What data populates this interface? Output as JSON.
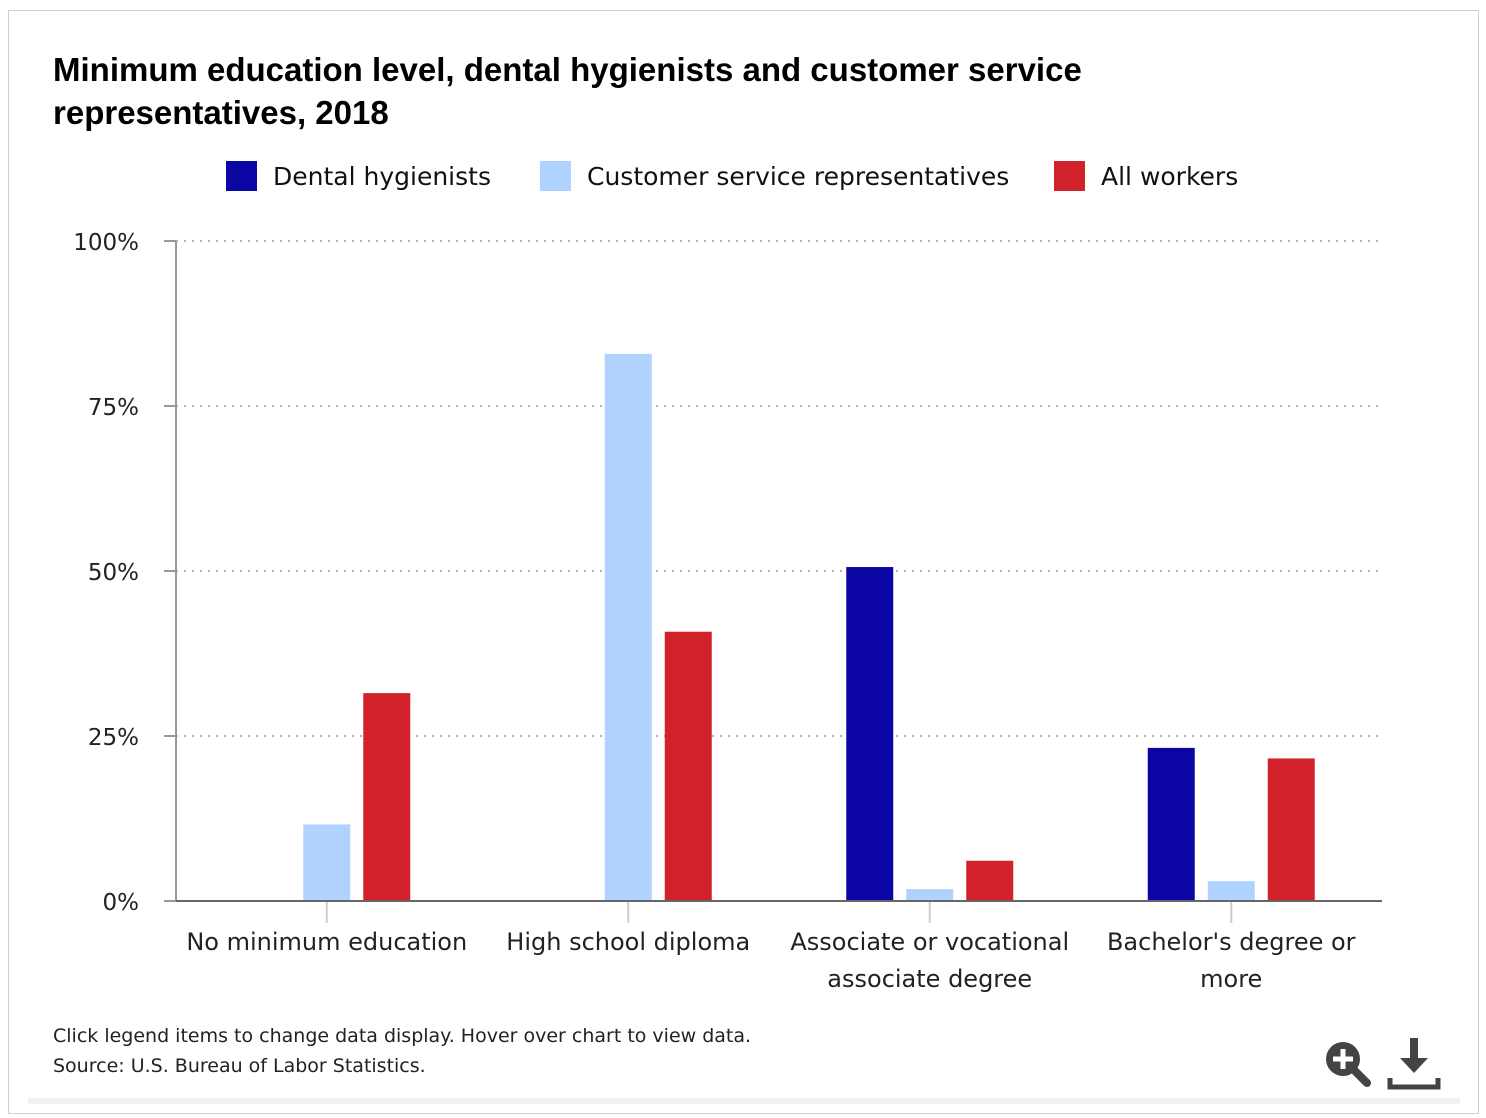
{
  "chart_data": {
    "type": "bar",
    "title": "Minimum education level, dental hygienists and customer service representatives, 2018",
    "categories": [
      [
        "No minimum education"
      ],
      [
        "High school diploma"
      ],
      [
        "Associate or vocational",
        "associate degree"
      ],
      [
        "Bachelor's degree or",
        "more"
      ]
    ],
    "series": [
      {
        "name": "Dental hygienists",
        "color": "#0b06a3",
        "values": [
          0,
          0,
          50.6,
          23.2
        ]
      },
      {
        "name": "Customer service representatives",
        "color": "#afd2ff",
        "values": [
          11.6,
          82.9,
          1.8,
          3.0
        ]
      },
      {
        "name": "All workers",
        "color": "#d1222b",
        "values": [
          31.5,
          40.8,
          6.1,
          21.6
        ]
      }
    ],
    "ylim": [
      0,
      100
    ],
    "yticks": [
      0,
      25,
      50,
      75,
      100
    ],
    "ytick_labels": [
      "0%",
      "25%",
      "50%",
      "75%",
      "100%"
    ],
    "grid": true,
    "legend_position": "top"
  },
  "footer": {
    "note": "Click legend items to change data display. Hover over chart to view data.",
    "source": "Source: U.S. Bureau of Labor Statistics."
  },
  "icons": {
    "zoom": "zoom-in-icon",
    "download": "download-icon"
  }
}
